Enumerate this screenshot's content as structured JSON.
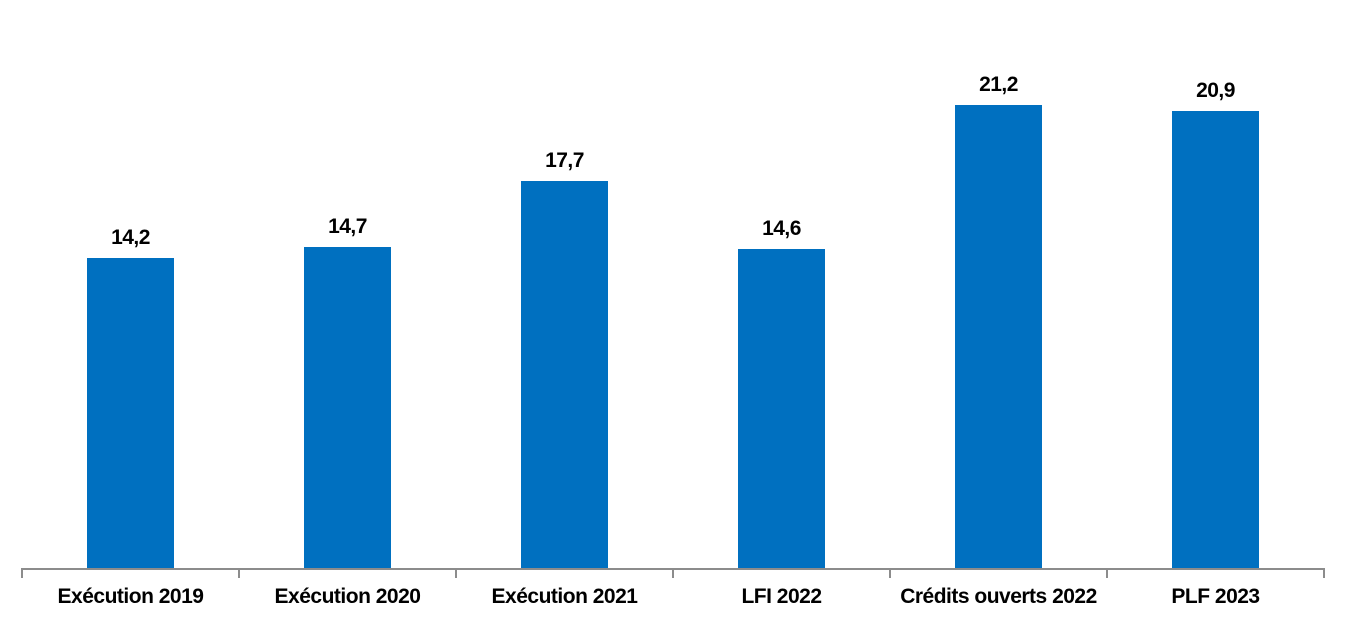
{
  "chart_data": {
    "type": "bar",
    "categories": [
      "Exécution 2019",
      "Exécution 2020",
      "Exécution 2021",
      "LFI 2022",
      "Crédits ouverts 2022",
      "PLF 2023"
    ],
    "values": [
      14.2,
      14.7,
      17.7,
      14.6,
      21.2,
      20.9
    ],
    "value_labels": [
      "14,2",
      "14,7",
      "17,7",
      "14,6",
      "21,2",
      "20,9"
    ],
    "title": "",
    "xlabel": "",
    "ylabel": "",
    "ylim": [
      0,
      26
    ],
    "grid": false,
    "legend": false,
    "y_axis_visible": false,
    "data_labels_position": "outside-end",
    "bar_color": "#0070C0",
    "axis_color": "#8C8C8C",
    "label_color": "#000000",
    "background_color": "#FFFFFF"
  }
}
